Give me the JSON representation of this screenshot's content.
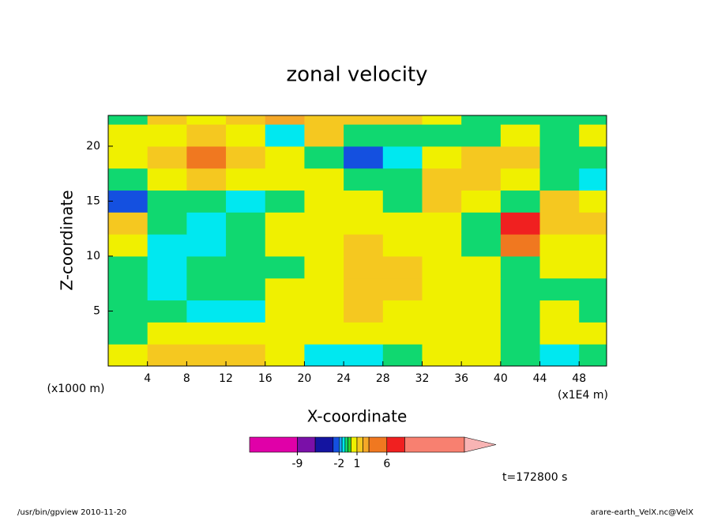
{
  "chart_data": {
    "type": "contour",
    "title": "zonal velocity",
    "x_label": "X-coordinate",
    "y_label": "Z-coordinate",
    "y_unit": "(x1000 m)",
    "x_unit": "(x1E4 m)",
    "time_label": "t=172800 s",
    "footer_left": "/usr/bin/gpview  2010-11-20",
    "footer_right": "arare-earth_VelX.nc@VelX",
    "xlim": [
      0,
      50.8
    ],
    "ylim": [
      0,
      22.8
    ],
    "xticks": [
      4,
      8,
      12,
      16,
      20,
      24,
      28,
      32,
      36,
      40,
      44,
      48
    ],
    "yticks": [
      5,
      10,
      15,
      20
    ],
    "x": [
      2,
      6,
      10,
      14,
      18,
      22,
      26,
      30,
      34,
      38,
      42,
      46,
      50
    ],
    "z": [
      1,
      3,
      5,
      7,
      9,
      11,
      13,
      15,
      17,
      19,
      21,
      23
    ],
    "values": [
      [
        0.5,
        1.5,
        1.5,
        1.5,
        0.5,
        -1.2,
        -1.2,
        -0.7,
        0.5,
        0.5,
        -0.7,
        -1.2,
        -0.7
      ],
      [
        -0.7,
        0.5,
        0.5,
        0.5,
        0.5,
        0.5,
        0.5,
        0.5,
        0.5,
        0.5,
        -0.7,
        0.5,
        0.5
      ],
      [
        -0.7,
        -0.7,
        -1.2,
        -1.2,
        0.5,
        0.5,
        1.5,
        0.5,
        0.5,
        0.5,
        -0.7,
        0.5,
        -0.7
      ],
      [
        -0.7,
        -1.2,
        -0.7,
        -0.7,
        0.5,
        0.5,
        1.5,
        1.5,
        0.5,
        0.5,
        -0.7,
        -0.7,
        -0.7
      ],
      [
        -0.7,
        -1.2,
        -0.7,
        -0.7,
        -0.7,
        0.5,
        1.5,
        1.5,
        0.5,
        0.5,
        -0.7,
        0.5,
        0.5
      ],
      [
        0.5,
        -1.2,
        -1.2,
        -0.7,
        0.5,
        0.5,
        1.5,
        0.5,
        0.5,
        -0.7,
        4,
        0.5,
        0.5
      ],
      [
        1.5,
        -0.7,
        -1.2,
        -0.7,
        0.5,
        0.5,
        0.5,
        0.5,
        0.5,
        -0.7,
        7,
        1.5,
        1.5
      ],
      [
        -2.5,
        -0.7,
        -0.7,
        -1.2,
        -0.7,
        0.5,
        0.5,
        -0.7,
        1.5,
        0.5,
        -0.7,
        1.5,
        0.5
      ],
      [
        -0.7,
        0.5,
        1.5,
        0.5,
        0.5,
        0.5,
        -0.7,
        -0.7,
        1.5,
        1.5,
        0.5,
        -0.7,
        -1.2
      ],
      [
        0.5,
        1.5,
        4,
        1.5,
        0.5,
        -0.7,
        -2.5,
        -1.2,
        0.5,
        1.5,
        1.5,
        -0.7,
        -0.7
      ],
      [
        0.5,
        0.5,
        1.5,
        0.5,
        -1.2,
        1.5,
        -0.7,
        -0.7,
        -0.7,
        -0.7,
        0.5,
        -0.7,
        0.5
      ],
      [
        -0.7,
        1.5,
        0.5,
        1.5,
        2.5,
        1.5,
        1.5,
        1.5,
        0.5,
        -0.7,
        -0.7,
        -0.7,
        -0.7
      ]
    ],
    "colorbar": {
      "levels": [
        -17,
        -9,
        -6,
        -3,
        -2,
        -1.5,
        -1,
        -0.5,
        0,
        1,
        2,
        3,
        6,
        9,
        19
      ],
      "colors": [
        "#e000a8",
        "#7a10a8",
        "#1414a0",
        "#1450e0",
        "#1ea0f0",
        "#00e8f0",
        "#10d870",
        "#30d030",
        "#f0f000",
        "#f5c820",
        "#f5a828",
        "#f07820",
        "#f02020",
        "#f88070"
      ],
      "extend_color": "#f8b4b4",
      "ticks": [
        -9,
        -2,
        1,
        6
      ]
    }
  }
}
